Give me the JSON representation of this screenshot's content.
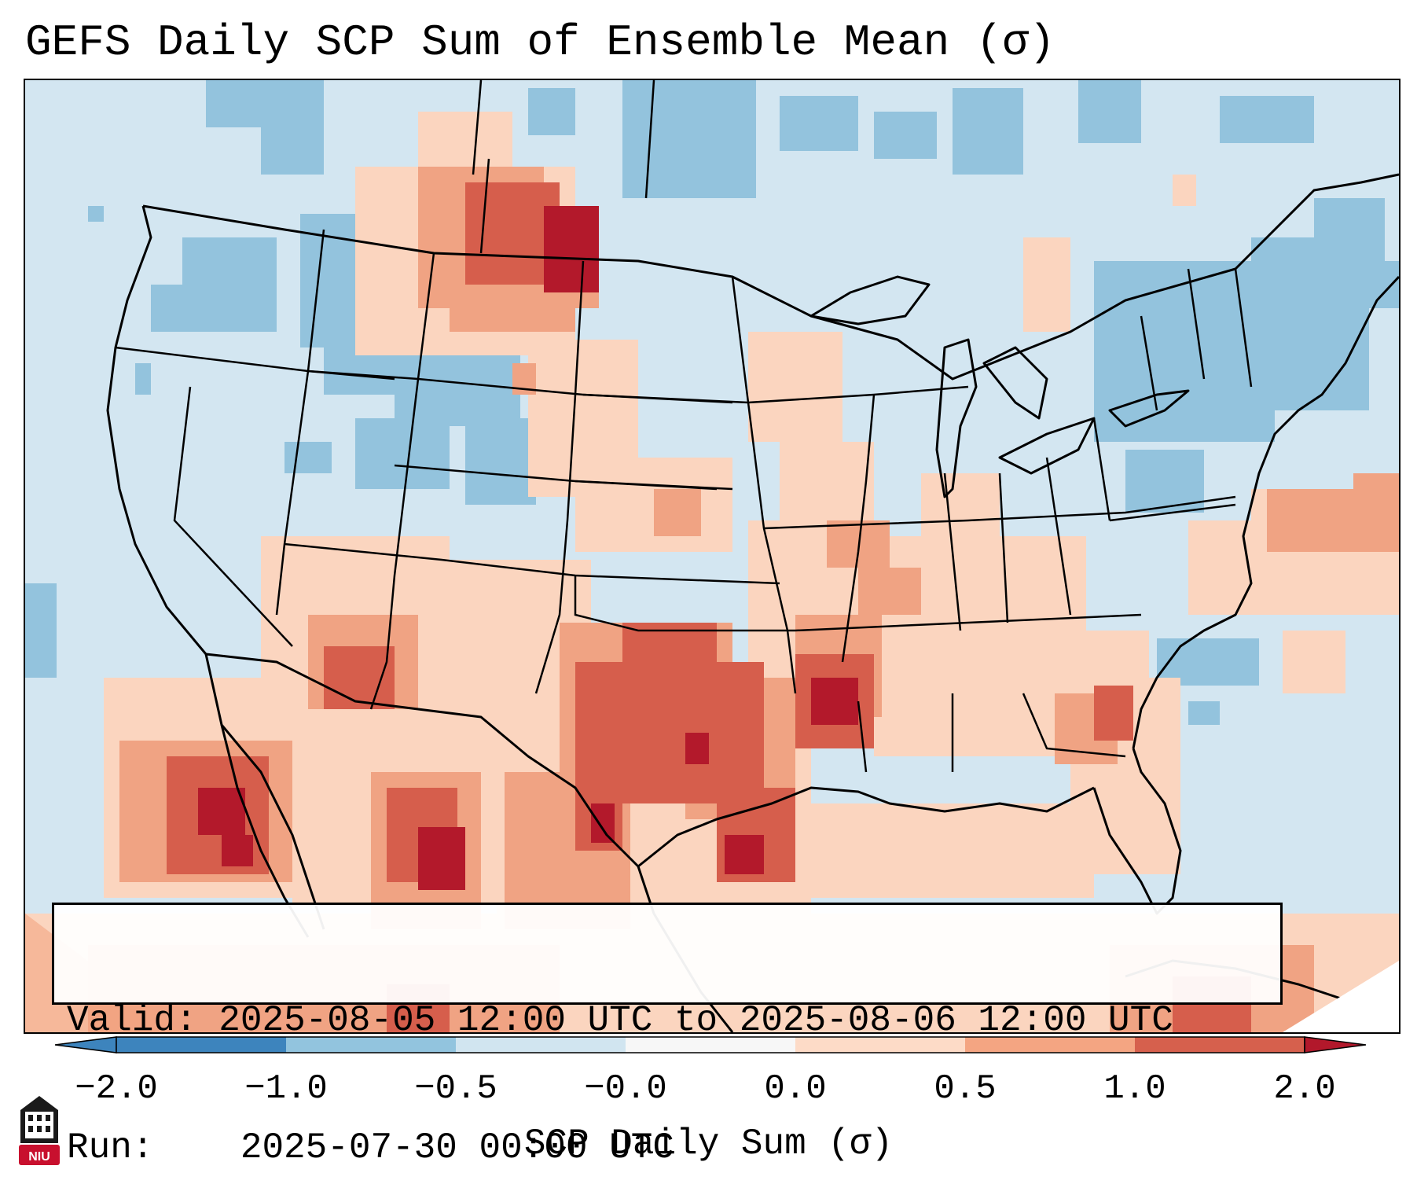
{
  "title": "GEFS Daily SCP Sum of Ensemble Mean (σ)",
  "info": {
    "valid_label": "Valid:",
    "valid_value": "2025-08-05 12:00 UTC to 2025-08-06 12:00 UTC",
    "run_label": "Run:",
    "run_value": "2025-07-30 00:00 UTC"
  },
  "colorbar": {
    "label": "SCP Daily Sum (σ)",
    "ticks": [
      "−2.0",
      "−1.0",
      "−0.5",
      "−0.0",
      "0.0",
      "0.5",
      "1.0",
      "2.0"
    ],
    "colors": [
      "#3d84bd",
      "#92c4de",
      "#d1e5f0",
      "#f7f7f7",
      "#fddbc7",
      "#f4a582",
      "#d6604d",
      "#b2182b"
    ]
  },
  "logo": {
    "text": "NIU",
    "icon": "niu-logo-icon"
  }
}
